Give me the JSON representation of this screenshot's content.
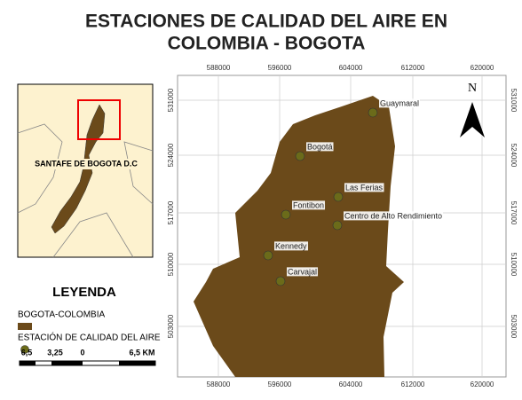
{
  "title": {
    "line1": "ESTACIONES DE CALIDAD DEL AIRE EN",
    "line2": "COLOMBIA - BOGOTA"
  },
  "inset": {
    "label": "SANTAFE DE BOGOTA D.C"
  },
  "legend": {
    "title": "LEYENDA",
    "items": [
      "BOGOTA-COLOMBIA",
      "ESTACIÓN DE CALIDAD DEL AIRE"
    ],
    "scale": [
      "6,5",
      "3,25",
      "0",
      "6,5 KM"
    ]
  },
  "map": {
    "north": "N",
    "x_ticks": [
      "588000",
      "596000",
      "604000",
      "612000",
      "620000"
    ],
    "y_ticks": [
      "531000",
      "524000",
      "517000",
      "510000",
      "503000"
    ],
    "stations": [
      "Guaymaral",
      "Bogotá",
      "Las Ferias",
      "Fontibon",
      "Centro de Alto Rendimiento",
      "Kennedy",
      "Carvajal"
    ]
  }
}
